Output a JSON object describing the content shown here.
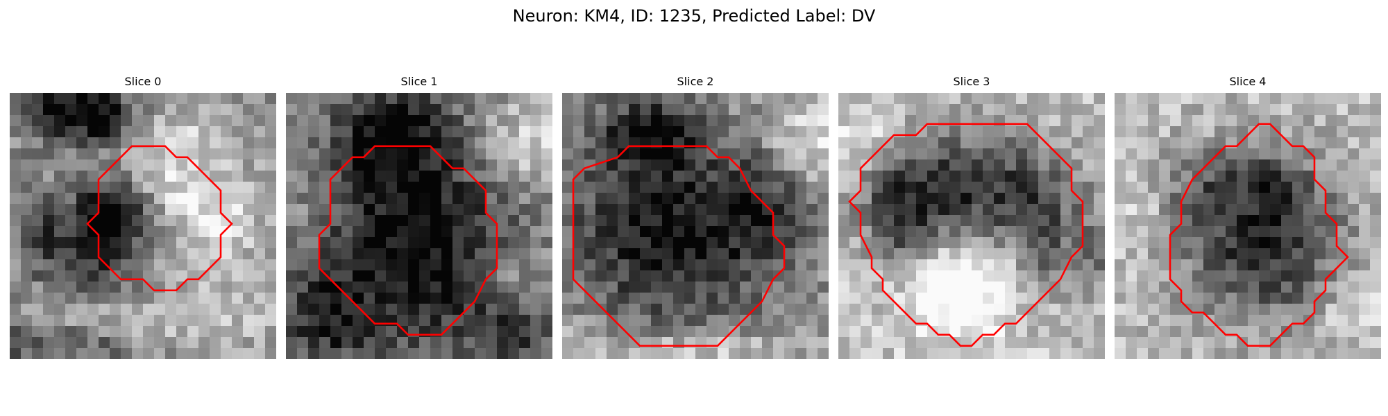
{
  "figure": {
    "title": "Neuron: KM4, ID: 1235, Predicted Label: DV"
  },
  "panels": [
    {
      "title": "Slice 0",
      "contour_color": "#ff0000",
      "contour": [
        [
          13,
          4.8
        ],
        [
          14,
          4.8
        ],
        [
          15,
          5.8
        ],
        [
          16,
          5.8
        ],
        [
          18,
          7.8
        ],
        [
          19,
          8.8
        ],
        [
          19,
          10.8
        ],
        [
          20,
          11.8
        ],
        [
          19,
          12.8
        ],
        [
          19,
          14.8
        ],
        [
          17,
          16.8
        ],
        [
          16,
          16.8
        ],
        [
          15,
          17.8
        ],
        [
          13,
          17.8
        ],
        [
          12,
          16.8
        ],
        [
          10,
          16.8
        ],
        [
          9,
          15.8
        ],
        [
          8,
          14.8
        ],
        [
          8,
          12.8
        ],
        [
          7,
          11.8
        ],
        [
          8,
          10.8
        ],
        [
          8,
          7.8
        ],
        [
          9,
          6.8
        ],
        [
          10,
          5.8
        ],
        [
          11,
          4.8
        ]
      ],
      "blobs": [
        [
          5,
          1,
          4,
          3,
          -0.55
        ],
        [
          8,
          2,
          2,
          2,
          -0.35
        ],
        [
          9,
          10,
          3,
          3,
          -0.5
        ],
        [
          7,
          13,
          4,
          4,
          -0.45
        ],
        [
          2,
          12,
          2,
          4,
          -0.25
        ],
        [
          13,
          7,
          4,
          3,
          0.25
        ],
        [
          18,
          11,
          4,
          5,
          0.3
        ],
        [
          16,
          3,
          3,
          2,
          0.2
        ],
        [
          10,
          20,
          8,
          2,
          0.2
        ],
        [
          3,
          22,
          8,
          2,
          -0.3
        ],
        [
          20,
          20,
          6,
          3,
          0.1
        ]
      ],
      "base": 0.58,
      "seed": 11
    },
    {
      "title": "Slice 1",
      "contour_color": "#ff0000",
      "contour": [
        [
          9,
          4.8
        ],
        [
          13,
          4.8
        ],
        [
          15,
          6.8
        ],
        [
          16,
          6.8
        ],
        [
          17,
          7.8
        ],
        [
          18,
          8.8
        ],
        [
          18,
          10.8
        ],
        [
          19,
          11.8
        ],
        [
          19,
          15.8
        ],
        [
          18,
          16.8
        ],
        [
          17,
          18.8
        ],
        [
          15,
          20.8
        ],
        [
          14,
          21.8
        ],
        [
          11,
          21.8
        ],
        [
          10,
          20.8
        ],
        [
          8,
          20.8
        ],
        [
          6,
          18.8
        ],
        [
          5,
          17.8
        ],
        [
          4,
          16.8
        ],
        [
          3,
          15.8
        ],
        [
          3,
          12.8
        ],
        [
          4,
          11.8
        ],
        [
          4,
          7.8
        ],
        [
          5,
          6.8
        ],
        [
          6,
          5.8
        ],
        [
          7,
          5.8
        ],
        [
          8,
          4.8
        ]
      ],
      "blobs": [
        [
          11,
          13,
          9,
          10,
          -0.55
        ],
        [
          9,
          3,
          5,
          4,
          -0.45
        ],
        [
          3,
          20,
          4,
          4,
          -0.35
        ],
        [
          20,
          21,
          4,
          4,
          -0.3
        ],
        [
          22,
          4,
          5,
          4,
          0.3
        ],
        [
          20,
          16,
          3,
          3,
          0.2
        ],
        [
          2,
          10,
          2,
          4,
          0.1
        ]
      ],
      "base": 0.58,
      "seed": 23
    },
    {
      "title": "Slice 2",
      "contour_color": "#ff0000",
      "contour": [
        [
          8,
          4.8
        ],
        [
          13,
          4.8
        ],
        [
          14,
          5.8
        ],
        [
          15,
          5.8
        ],
        [
          16,
          6.8
        ],
        [
          17,
          8.8
        ],
        [
          18,
          9.8
        ],
        [
          19,
          10.8
        ],
        [
          19,
          12.8
        ],
        [
          20,
          13.8
        ],
        [
          20,
          15.8
        ],
        [
          19,
          16.8
        ],
        [
          18,
          18.8
        ],
        [
          17,
          19.8
        ],
        [
          16,
          20.8
        ],
        [
          14,
          22.8
        ],
        [
          11,
          22.8
        ],
        [
          10,
          22.8
        ],
        [
          7,
          22.8
        ],
        [
          5,
          20.8
        ],
        [
          3,
          18.8
        ],
        [
          1,
          16.8
        ],
        [
          1,
          10.8
        ],
        [
          1,
          7.8
        ],
        [
          2,
          6.8
        ],
        [
          5,
          5.8
        ],
        [
          6,
          4.8
        ]
      ],
      "blobs": [
        [
          9,
          12,
          9,
          8,
          -0.55
        ],
        [
          7,
          3,
          5,
          3,
          -0.45
        ],
        [
          18,
          10,
          4,
          5,
          -0.3
        ],
        [
          22,
          4,
          4,
          4,
          0.3
        ],
        [
          10,
          23,
          10,
          2,
          0.25
        ],
        [
          1,
          22,
          3,
          3,
          0.1
        ]
      ],
      "base": 0.6,
      "seed": 37
    },
    {
      "title": "Slice 3",
      "contour_color": "#ff0000",
      "contour": [
        [
          10,
          2.8
        ],
        [
          17,
          2.8
        ],
        [
          18,
          3.8
        ],
        [
          19,
          4.8
        ],
        [
          20,
          5.8
        ],
        [
          21,
          6.8
        ],
        [
          21,
          8.8
        ],
        [
          22,
          9.8
        ],
        [
          22,
          13.8
        ],
        [
          21,
          14.8
        ],
        [
          20,
          16.8
        ],
        [
          19,
          17.8
        ],
        [
          18,
          18.8
        ],
        [
          17,
          19.8
        ],
        [
          16,
          20.8
        ],
        [
          15,
          20.8
        ],
        [
          14,
          21.8
        ],
        [
          13,
          21.8
        ],
        [
          12,
          22.8
        ],
        [
          11,
          22.8
        ],
        [
          10,
          21.8
        ],
        [
          9,
          21.8
        ],
        [
          8,
          20.8
        ],
        [
          7,
          20.8
        ],
        [
          6,
          19.8
        ],
        [
          5,
          18.8
        ],
        [
          4,
          17.8
        ],
        [
          4,
          16.8
        ],
        [
          3,
          15.8
        ],
        [
          3,
          14.8
        ],
        [
          2,
          12.8
        ],
        [
          2,
          10.8
        ],
        [
          1,
          9.8
        ],
        [
          2,
          8.8
        ],
        [
          2,
          6.8
        ],
        [
          3,
          5.8
        ],
        [
          4,
          4.8
        ],
        [
          5,
          3.8
        ],
        [
          6,
          3.8
        ],
        [
          7,
          3.8
        ],
        [
          8,
          2.8
        ],
        [
          9,
          2.8
        ]
      ],
      "blobs": [
        [
          11,
          8,
          9,
          5,
          -0.6
        ],
        [
          5,
          12,
          3,
          5,
          -0.35
        ],
        [
          18,
          13,
          3,
          5,
          -0.35
        ],
        [
          10,
          17,
          5,
          4,
          0.45
        ],
        [
          23,
          14,
          2,
          4,
          -0.3
        ],
        [
          2,
          4,
          3,
          3,
          0.2
        ]
      ],
      "base": 0.76,
      "seed": 53
    },
    {
      "title": "Slice 4",
      "contour_color": "#ff0000",
      "contour": [
        [
          12,
          3.8
        ],
        [
          13,
          2.8
        ],
        [
          14,
          2.8
        ],
        [
          15,
          3.8
        ],
        [
          16,
          4.8
        ],
        [
          17,
          4.8
        ],
        [
          18,
          5.8
        ],
        [
          18,
          7.8
        ],
        [
          19,
          8.8
        ],
        [
          19,
          10.8
        ],
        [
          20,
          11.8
        ],
        [
          20,
          13.8
        ],
        [
          21,
          14.8
        ],
        [
          20,
          15.8
        ],
        [
          19,
          16.8
        ],
        [
          19,
          17.8
        ],
        [
          18,
          18.8
        ],
        [
          18,
          19.8
        ],
        [
          17,
          20.8
        ],
        [
          16,
          20.8
        ],
        [
          15,
          21.8
        ],
        [
          14,
          22.8
        ],
        [
          12,
          22.8
        ],
        [
          11,
          21.8
        ],
        [
          10,
          21.8
        ],
        [
          9,
          20.8
        ],
        [
          8,
          19.8
        ],
        [
          7,
          19.8
        ],
        [
          6,
          18.8
        ],
        [
          6,
          17.8
        ],
        [
          5,
          16.8
        ],
        [
          5,
          12.8
        ],
        [
          6,
          11.8
        ],
        [
          6,
          9.8
        ],
        [
          7,
          7.8
        ],
        [
          8,
          6.8
        ],
        [
          9,
          5.8
        ],
        [
          10,
          4.8
        ],
        [
          11,
          4.8
        ]
      ],
      "blobs": [
        [
          13,
          13,
          7,
          7,
          -0.6
        ],
        [
          7,
          8,
          3,
          4,
          -0.2
        ],
        [
          13,
          7,
          4,
          3,
          -0.25
        ],
        [
          2,
          11,
          2,
          3,
          0.1
        ],
        [
          21,
          19,
          3,
          3,
          0.15
        ]
      ],
      "base": 0.74,
      "seed": 71
    }
  ]
}
